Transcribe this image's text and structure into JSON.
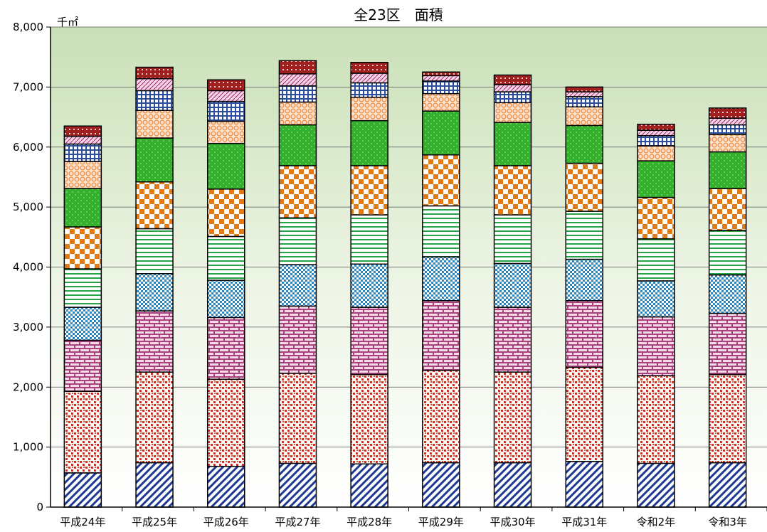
{
  "chart_data": {
    "type": "bar",
    "stacked": true,
    "title": "全23区　面積",
    "unit_label": "千㎡",
    "ylim": [
      0,
      8000
    ],
    "y_ticks": [
      "0",
      "1,000",
      "2,000",
      "3,000",
      "4,000",
      "5,000",
      "6,000",
      "7,000",
      "8,000"
    ],
    "grid": true,
    "legend": "none",
    "categories": [
      "平成24年",
      "平成25年",
      "平成26年",
      "平成27年",
      "平成28年",
      "平成29年",
      "平成30年",
      "平成31年",
      "令和2年",
      "令和3年"
    ],
    "series": [
      {
        "values": [
          570,
          740,
          680,
          730,
          720,
          740,
          740,
          760,
          730,
          740
        ]
      },
      {
        "values": [
          1360,
          1510,
          1450,
          1500,
          1490,
          1540,
          1510,
          1570,
          1460,
          1470
        ]
      },
      {
        "values": [
          850,
          1020,
          1030,
          1120,
          1120,
          1160,
          1080,
          1110,
          980,
          1020
        ]
      },
      {
        "values": [
          550,
          620,
          620,
          690,
          720,
          730,
          730,
          690,
          600,
          640
        ]
      },
      {
        "values": [
          640,
          750,
          730,
          780,
          820,
          850,
          810,
          800,
          700,
          740
        ]
      },
      {
        "values": [
          700,
          780,
          790,
          870,
          820,
          850,
          820,
          800,
          690,
          700
        ]
      },
      {
        "values": [
          640,
          730,
          760,
          680,
          750,
          730,
          720,
          630,
          610,
          610
        ]
      },
      {
        "values": [
          450,
          460,
          370,
          380,
          390,
          290,
          330,
          310,
          250,
          290
        ]
      },
      {
        "values": [
          290,
          330,
          330,
          270,
          240,
          210,
          180,
          170,
          170,
          160
        ]
      },
      {
        "values": [
          130,
          200,
          180,
          200,
          160,
          90,
          120,
          80,
          90,
          110
        ]
      },
      {
        "values": [
          170,
          190,
          180,
          220,
          180,
          60,
          160,
          80,
          100,
          170
        ]
      }
    ],
    "colors": [
      "#1f3a93",
      "#c0392b",
      "#9b2f6b",
      "#2e86c1",
      "#27a348",
      "#e07b18",
      "#33b12d",
      "#ee8f4a",
      "#2a4d9b",
      "#a0286a",
      "#a02020"
    ]
  }
}
